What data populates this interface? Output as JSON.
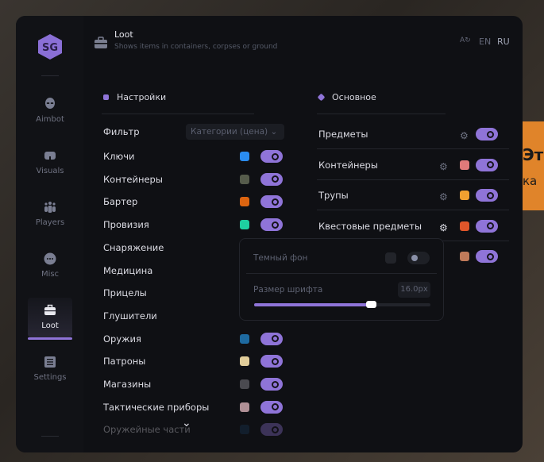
{
  "background_panel": {
    "line1": "Эт",
    "line2": "ка"
  },
  "sidebar": {
    "items": [
      {
        "label": "Aimbot",
        "icon": "alien-icon"
      },
      {
        "label": "Visuals",
        "icon": "vr-glasses-icon"
      },
      {
        "label": "Players",
        "icon": "users-icon"
      },
      {
        "label": "Misc",
        "icon": "dots-icon"
      },
      {
        "label": "Loot",
        "icon": "briefcase-icon",
        "active": true
      },
      {
        "label": "Settings",
        "icon": "list-icon"
      }
    ]
  },
  "header": {
    "title": "Loot",
    "subtitle": "Shows items in containers, corpses or ground",
    "lang_en": "EN",
    "lang_ru": "RU"
  },
  "left": {
    "title": "Настройки",
    "filter_label": "Фильтр",
    "filter_value": "Категории (цена)",
    "items": [
      {
        "label": "Ключи",
        "color": "#2a8cf0",
        "on": true
      },
      {
        "label": "Контейнеры",
        "color": "#565c4c",
        "on": true
      },
      {
        "label": "Бартер",
        "color": "#dc6410",
        "on": true
      },
      {
        "label": "Провизия",
        "color": "#1ed0a0",
        "on": true
      },
      {
        "label": "Снаряжение"
      },
      {
        "label": "Медицина"
      },
      {
        "label": "Прицелы"
      },
      {
        "label": "Глушители"
      },
      {
        "label": "Оружия",
        "color": "#1e6aa0",
        "on": true
      },
      {
        "label": "Патроны",
        "color": "#e0cc9a",
        "on": true
      },
      {
        "label": "Магазины",
        "color": "#4a4a50",
        "on": true
      },
      {
        "label": "Тактические приборы",
        "color": "#b09096",
        "on": true
      },
      {
        "label": "Оружейные части",
        "color": "#1a3a5a",
        "on": true
      }
    ]
  },
  "right": {
    "title": "Основное",
    "items": [
      {
        "label": "Предметы",
        "on": true
      },
      {
        "label": "Контейнеры",
        "color": "#e07a7a",
        "on": true
      },
      {
        "label": "Трупы",
        "color": "#f0a030",
        "on": true
      },
      {
        "label": "Квестовые предметы",
        "color": "#e0562a",
        "on": true
      },
      {
        "label": "",
        "color": "#c07a5a",
        "on": true
      }
    ]
  },
  "popup": {
    "dark_bg_label": "Темный фон",
    "dark_bg_on": false,
    "font_size_label": "Размер шрифта",
    "font_size_value": "16.0px",
    "font_size_fraction": 0.66
  },
  "accent": "#8f74d8"
}
